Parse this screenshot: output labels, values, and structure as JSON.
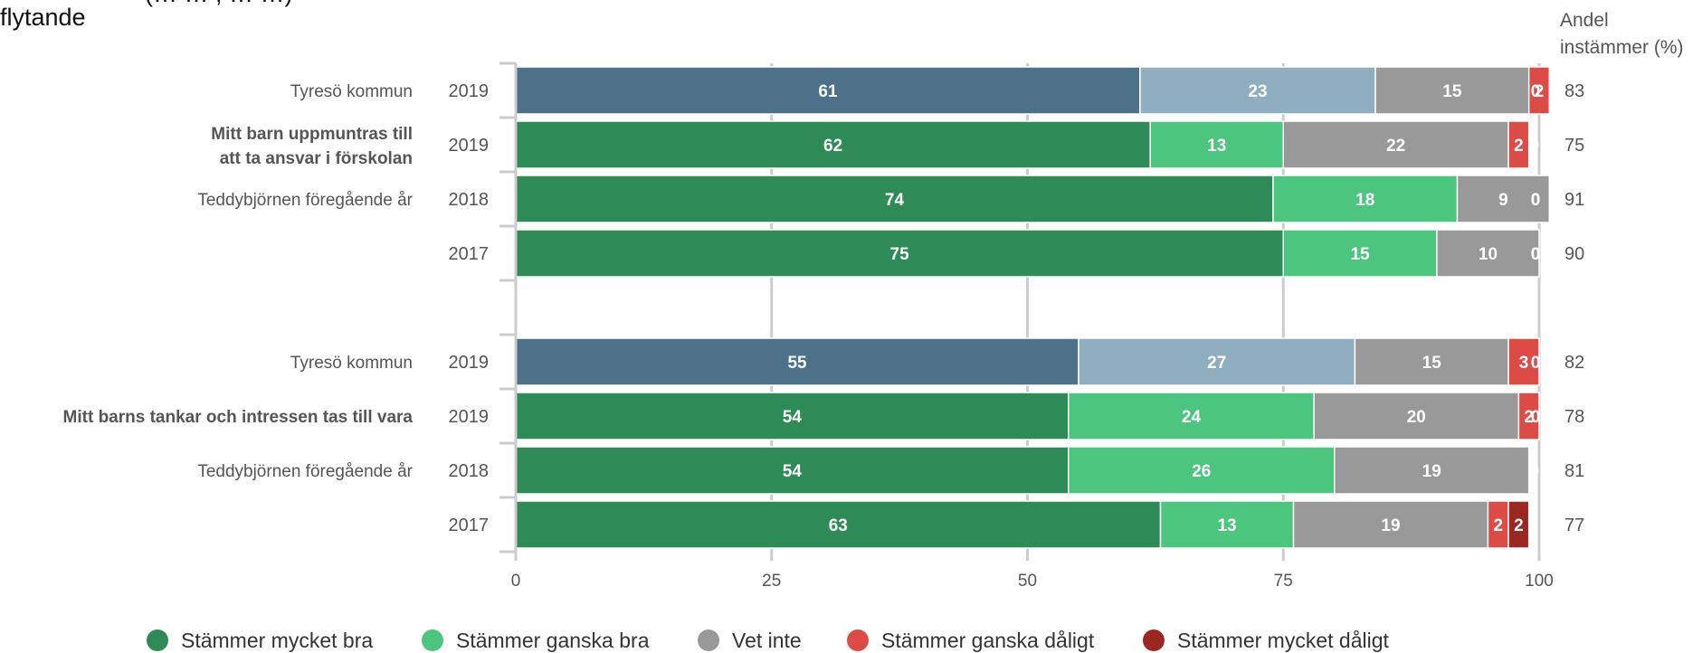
{
  "title_fragment_top": "(… … , … …)",
  "title_fragment": "flytande",
  "total_header": [
    "Andel",
    "instämmer (%)"
  ],
  "colors": {
    "dark_green": "#2e8b57",
    "light_green": "#4cc57f",
    "gray": "#999999",
    "red": "#dd4b47",
    "dark_red": "#9b2622",
    "blue_dark": "#4c7189",
    "blue_light": "#8fafc1",
    "axis": "#cccccc"
  },
  "legend": [
    {
      "label": "Stämmer mycket bra",
      "color": "#2e8b57"
    },
    {
      "label": "Stämmer ganska bra",
      "color": "#4cc57f"
    },
    {
      "label": "Vet inte",
      "color": "#999999"
    },
    {
      "label": "Stämmer ganska dåligt",
      "color": "#dd4b47"
    },
    {
      "label": "Stämmer mycket dåligt",
      "color": "#9b2622"
    }
  ],
  "chart_data": {
    "type": "bar",
    "orientation": "horizontal",
    "stacked": true,
    "xlim": [
      0,
      100
    ],
    "xticks": [
      0,
      25,
      50,
      75,
      100
    ],
    "legend_position": "bottom",
    "rows": [
      {
        "label": "Tyresö kommun",
        "bold": false,
        "year": "2019",
        "palette": "blue",
        "values": [
          61,
          23,
          15,
          2,
          0
        ],
        "total": 83
      },
      {
        "label": "Mitt barn uppmuntras till\natt ta ansvar i förskolan",
        "bold": true,
        "year": "2019",
        "palette": "green",
        "values": [
          62,
          13,
          22,
          2,
          0
        ],
        "total": 75
      },
      {
        "label": "Teddybjörnen föregående år",
        "bold": false,
        "year": "2018",
        "palette": "green",
        "values": [
          74,
          18,
          9,
          0,
          0
        ],
        "total": 91
      },
      {
        "label": "",
        "bold": false,
        "year": "2017",
        "palette": "green",
        "values": [
          75,
          15,
          10,
          0,
          0
        ],
        "total": 90
      },
      {
        "spacer": true
      },
      {
        "label": "Tyresö kommun",
        "bold": false,
        "year": "2019",
        "palette": "blue",
        "values": [
          55,
          27,
          15,
          3,
          0
        ],
        "total": 82
      },
      {
        "label": "Mitt barns tankar och intressen tas till vara",
        "bold": true,
        "year": "2019",
        "palette": "green",
        "values": [
          54,
          24,
          20,
          2,
          0
        ],
        "total": 78
      },
      {
        "label": "Teddybjörnen föregående år",
        "bold": false,
        "year": "2018",
        "palette": "green",
        "values": [
          54,
          26,
          19,
          0,
          0
        ],
        "total": 81
      },
      {
        "label": "",
        "bold": false,
        "year": "2017",
        "palette": "green",
        "values": [
          63,
          13,
          19,
          2,
          2
        ],
        "total": 77
      }
    ]
  }
}
